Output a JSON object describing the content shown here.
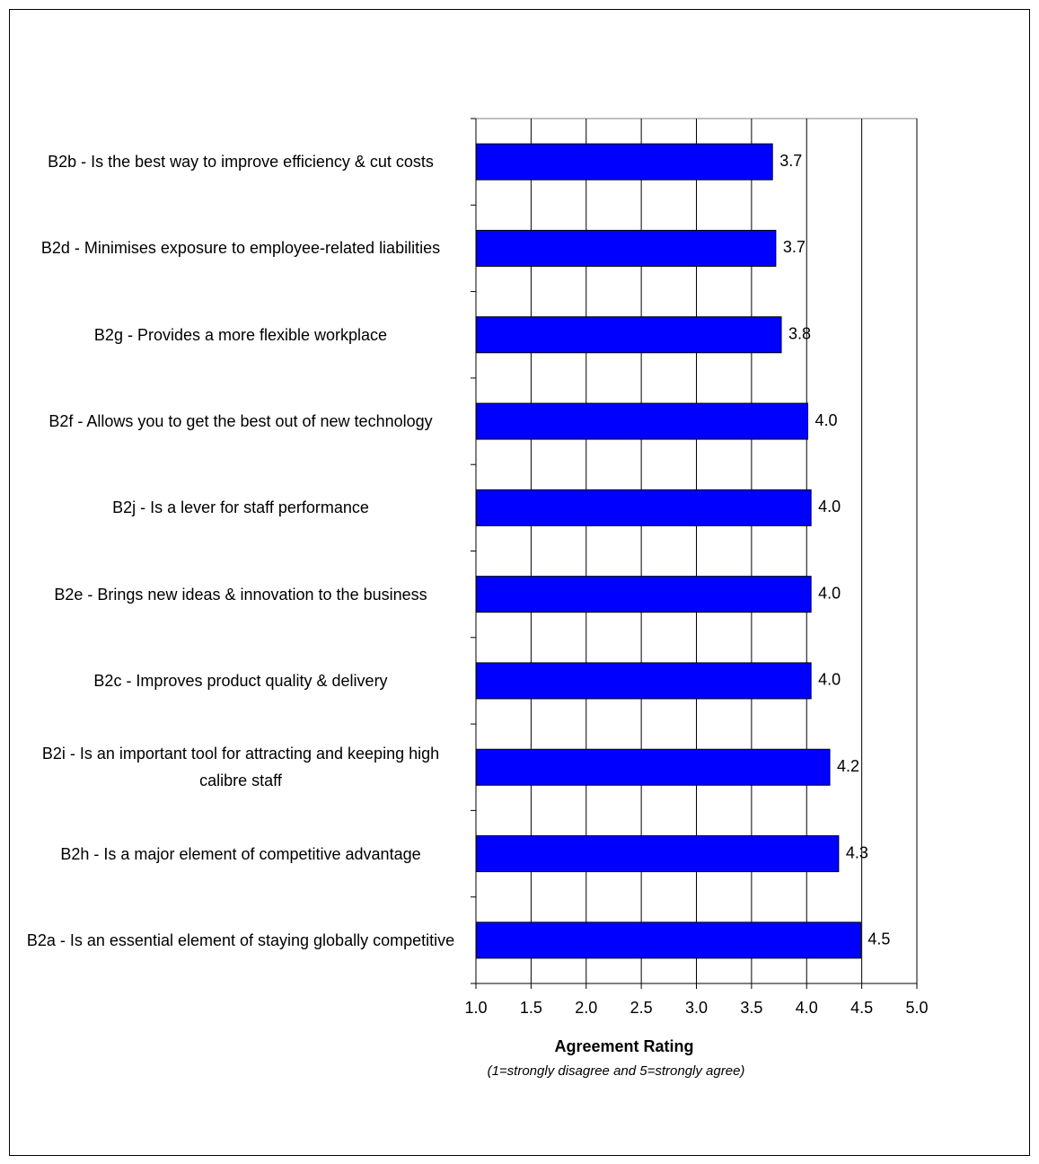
{
  "chart_data": {
    "type": "barh",
    "categories": [
      "B2b - Is the best way to improve efficiency & cut costs",
      "B2d - Minimises exposure to employee-related liabilities",
      "B2g - Provides a more flexible workplace",
      "B2f - Allows you to get the best out of new technology",
      "B2j - Is a lever for staff performance",
      "B2e - Brings new ideas & innovation to the business",
      "B2c - Improves product quality & delivery",
      "B2i - Is an important tool for attracting and keeping high calibre staff",
      "B2h - Is a major element of competitive advantage",
      "B2a - Is an essential element of staying globally competitive"
    ],
    "values": [
      3.69,
      3.72,
      3.77,
      4.01,
      4.04,
      4.04,
      4.04,
      4.21,
      4.29,
      4.49
    ],
    "value_labels": [
      "3.7",
      "3.7",
      "3.8",
      "4.0",
      "4.0",
      "4.0",
      "4.0",
      "4.2",
      "4.3",
      "4.5"
    ],
    "color": "#0000ff",
    "xlim": [
      1,
      5
    ],
    "xticks": [
      {
        "value": 1,
        "label": "1.0"
      },
      {
        "value": 1.5,
        "label": "1.5"
      },
      {
        "value": 2,
        "label": "2.0"
      },
      {
        "value": 2.5,
        "label": "2.5"
      },
      {
        "value": 3,
        "label": "3.0"
      },
      {
        "value": 3.5,
        "label": "3.5"
      },
      {
        "value": 4,
        "label": "4.0"
      },
      {
        "value": 4.5,
        "label": "4.5"
      },
      {
        "value": 5,
        "label": "5.0"
      }
    ],
    "grid": true,
    "xlabel": "Agreement Rating",
    "xlabel_note": "(1=strongly disagree and 5=strongly agree)"
  }
}
